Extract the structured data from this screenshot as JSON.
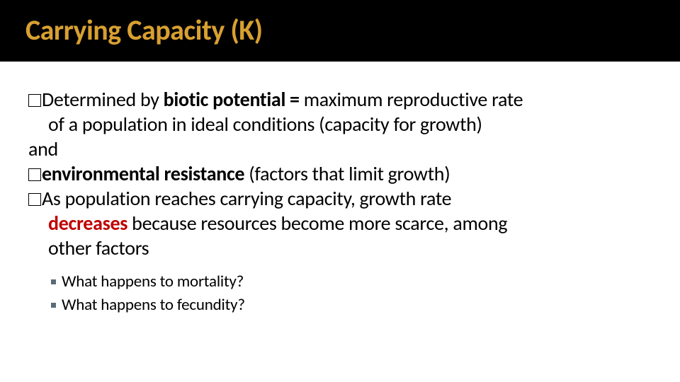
{
  "slide": {
    "title": "Carrying Capacity (K)",
    "title_color": "#d8a030",
    "title_bg": "#000000",
    "title_fontsize": 40,
    "body_fontsize": 28,
    "sub_fontsize": 23,
    "red_color": "#c00000",
    "sub_marker_color": "#5a6b78",
    "lines": {
      "l1a": "Determined by ",
      "l1b": "biotic potential = ",
      "l1c": " maximum reproductive rate",
      "l2": "of a population in ideal conditions (capacity for growth)",
      "l3": "and",
      "l4a": "environmental resistance",
      "l4b": " (factors that limit growth)",
      "l5a": "As population reaches carrying capacity, growth rate",
      "l6a": "decreases",
      "l6b": " because resources become more scarce, among",
      "l7": "other factors"
    },
    "subitems": {
      "s1": "What happens to mortality?",
      "s2": "What happens to fecundity?"
    }
  }
}
